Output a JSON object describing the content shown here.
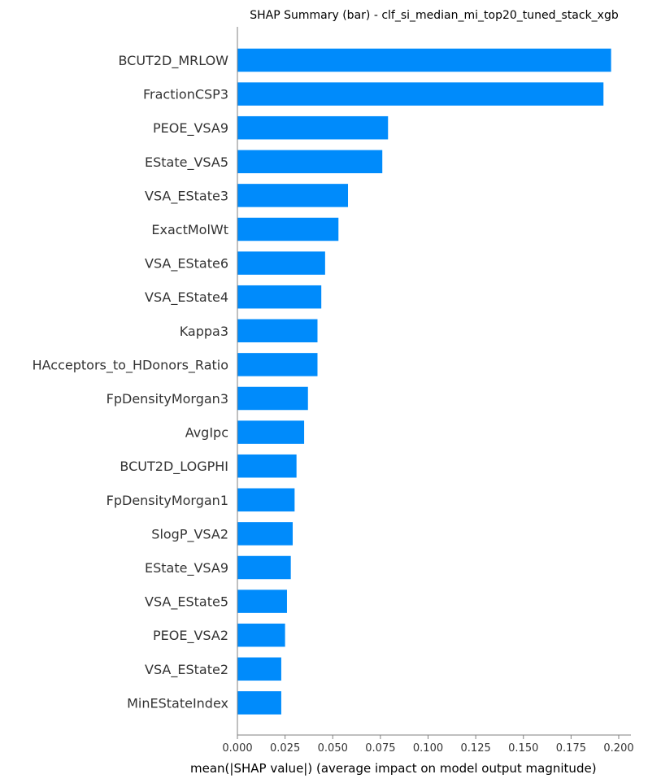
{
  "chart_data": {
    "type": "bar",
    "orientation": "horizontal",
    "title": "SHAP Summary (bar) - clf_si_median_mi_top20_tuned_stack_xgb",
    "xlabel": "mean(|SHAP value|) (average impact on model output magnitude)",
    "ylabel": "",
    "xlim": [
      0,
      0.205
    ],
    "xticks": [
      "0.000",
      "0.025",
      "0.050",
      "0.075",
      "0.100",
      "0.125",
      "0.150",
      "0.175",
      "0.200"
    ],
    "xtick_values": [
      0,
      0.025,
      0.05,
      0.075,
      0.1,
      0.125,
      0.15,
      0.175,
      0.2
    ],
    "grid": false,
    "bar_color": "#008bfb",
    "categories": [
      "BCUT2D_MRLOW",
      "FractionCSP3",
      "PEOE_VSA9",
      "EState_VSA5",
      "VSA_EState3",
      "ExactMolWt",
      "VSA_EState6",
      "VSA_EState4",
      "Kappa3",
      "HAcceptors_to_HDonors_Ratio",
      "FpDensityMorgan3",
      "AvgIpc",
      "BCUT2D_LOGPHI",
      "FpDensityMorgan1",
      "SlogP_VSA2",
      "EState_VSA9",
      "VSA_EState5",
      "PEOE_VSA2",
      "VSA_EState2",
      "MinEStateIndex"
    ],
    "values": [
      0.196,
      0.192,
      0.079,
      0.076,
      0.058,
      0.053,
      0.046,
      0.044,
      0.042,
      0.042,
      0.037,
      0.035,
      0.031,
      0.03,
      0.029,
      0.028,
      0.026,
      0.025,
      0.023,
      0.023
    ]
  }
}
